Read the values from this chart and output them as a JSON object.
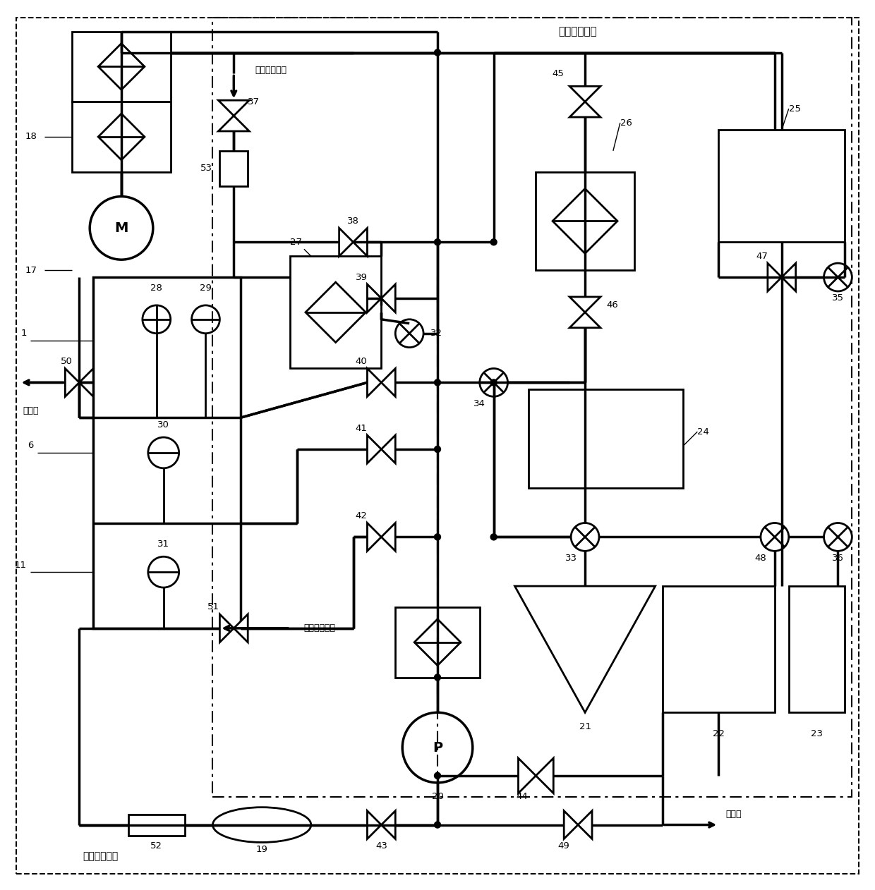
{
  "bg_color": "#ffffff",
  "line_color": "#000000",
  "figsize": [
    12.4,
    12.62
  ],
  "dpi": 100,
  "powder_system_label": "粉末循环系统",
  "gas_system_label": "气体循环系统",
  "inert_gas_label1": "惰性气体入口",
  "inert_gas_label2": "惰性气体入口",
  "exhaust_label1": "废气排",
  "exhaust_label2": "废气排"
}
